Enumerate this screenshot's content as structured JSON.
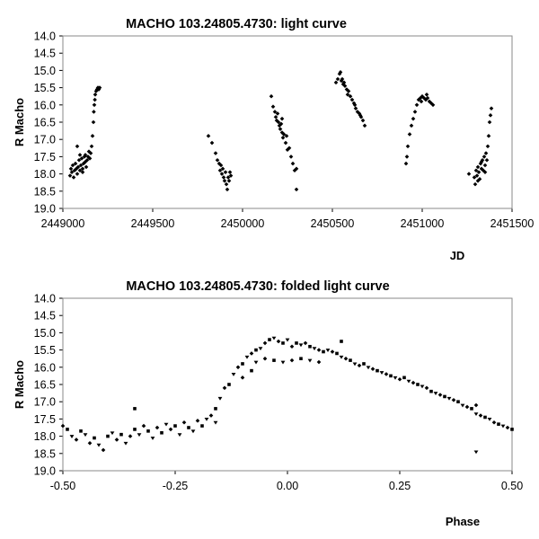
{
  "chart_data": [
    {
      "type": "scatter",
      "title": "MACHO 103.24805.4730: light curve",
      "xlabel": "JD",
      "ylabel": "R Macho",
      "xlim": [
        2449000,
        2451500
      ],
      "ylim": [
        14.0,
        19.0
      ],
      "y_inverted": true,
      "grid": false,
      "xticks": [
        "2449000",
        "2449500",
        "2450000",
        "2450500",
        "2451000",
        "2451500"
      ],
      "yticks": [
        "14.0",
        "14.5",
        "15.0",
        "15.5",
        "16.0",
        "16.5",
        "17.0",
        "17.5",
        "18.0",
        "18.5",
        "19.0"
      ],
      "series": [
        {
          "points": [
            [
              2449040,
              18.05
            ],
            [
              2449045,
              17.85
            ],
            [
              2449050,
              17.95
            ],
            [
              2449055,
              17.75
            ],
            [
              2449060,
              18.1
            ],
            [
              2449065,
              17.9
            ],
            [
              2449070,
              17.7
            ],
            [
              2449075,
              17.85
            ],
            [
              2449080,
              18.0
            ],
            [
              2449085,
              17.8
            ],
            [
              2449090,
              17.6
            ],
            [
              2449095,
              17.9
            ],
            [
              2449100,
              17.75
            ],
            [
              2449105,
              17.55
            ],
            [
              2449110,
              17.85
            ],
            [
              2449115,
              17.7
            ],
            [
              2449120,
              17.5
            ],
            [
              2449125,
              17.65
            ],
            [
              2449130,
              17.8
            ],
            [
              2449135,
              17.6
            ],
            [
              2449140,
              17.5
            ],
            [
              2449145,
              17.35
            ],
            [
              2449150,
              17.55
            ],
            [
              2449155,
              17.4
            ],
            [
              2449160,
              17.2
            ],
            [
              2449165,
              16.9
            ],
            [
              2449170,
              16.5
            ],
            [
              2449172,
              16.2
            ],
            [
              2449175,
              16.0
            ],
            [
              2449178,
              15.85
            ],
            [
              2449180,
              15.7
            ],
            [
              2449185,
              15.6
            ],
            [
              2449190,
              15.55
            ],
            [
              2449195,
              15.5
            ],
            [
              2449200,
              15.55
            ],
            [
              2449205,
              15.5
            ],
            [
              2449080,
              17.2
            ],
            [
              2449095,
              17.45
            ],
            [
              2449110,
              17.95
            ],
            [
              2449125,
              17.45
            ],
            [
              2449810,
              16.9
            ],
            [
              2449830,
              17.1
            ],
            [
              2449850,
              17.4
            ],
            [
              2449860,
              17.6
            ],
            [
              2449870,
              17.7
            ],
            [
              2449875,
              17.9
            ],
            [
              2449880,
              17.75
            ],
            [
              2449885,
              18.0
            ],
            [
              2449890,
              17.85
            ],
            [
              2449895,
              18.1
            ],
            [
              2449900,
              18.2
            ],
            [
              2449905,
              17.95
            ],
            [
              2449910,
              18.3
            ],
            [
              2449915,
              18.45
            ],
            [
              2449920,
              18.1
            ],
            [
              2449925,
              18.2
            ],
            [
              2449930,
              17.95
            ],
            [
              2449935,
              18.05
            ],
            [
              2450160,
              15.75
            ],
            [
              2450170,
              16.05
            ],
            [
              2450180,
              16.2
            ],
            [
              2450185,
              16.35
            ],
            [
              2450190,
              16.45
            ],
            [
              2450195,
              16.25
            ],
            [
              2450200,
              16.5
            ],
            [
              2450205,
              16.6
            ],
            [
              2450210,
              16.7
            ],
            [
              2450215,
              16.55
            ],
            [
              2450220,
              16.8
            ],
            [
              2450225,
              16.95
            ],
            [
              2450230,
              16.85
            ],
            [
              2450240,
              17.1
            ],
            [
              2450250,
              17.3
            ],
            [
              2450260,
              17.25
            ],
            [
              2450270,
              17.5
            ],
            [
              2450280,
              17.7
            ],
            [
              2450290,
              17.9
            ],
            [
              2450300,
              17.85
            ],
            [
              2450300,
              18.45
            ],
            [
              2450220,
              16.4
            ],
            [
              2450245,
              16.9
            ],
            [
              2450520,
              15.35
            ],
            [
              2450530,
              15.25
            ],
            [
              2450540,
              15.1
            ],
            [
              2450545,
              15.05
            ],
            [
              2450550,
              15.3
            ],
            [
              2450555,
              15.25
            ],
            [
              2450560,
              15.4
            ],
            [
              2450570,
              15.45
            ],
            [
              2450580,
              15.55
            ],
            [
              2450590,
              15.6
            ],
            [
              2450600,
              15.75
            ],
            [
              2450610,
              15.85
            ],
            [
              2450620,
              15.95
            ],
            [
              2450630,
              16.1
            ],
            [
              2450640,
              16.2
            ],
            [
              2450650,
              16.25
            ],
            [
              2450660,
              16.35
            ],
            [
              2450670,
              16.45
            ],
            [
              2450680,
              16.6
            ],
            [
              2450565,
              15.35
            ],
            [
              2450585,
              15.7
            ],
            [
              2450625,
              16.0
            ],
            [
              2450655,
              16.3
            ],
            [
              2450910,
              17.7
            ],
            [
              2450915,
              17.5
            ],
            [
              2450920,
              17.2
            ],
            [
              2450930,
              16.85
            ],
            [
              2450940,
              16.6
            ],
            [
              2450950,
              16.4
            ],
            [
              2450960,
              16.2
            ],
            [
              2450970,
              16.0
            ],
            [
              2450980,
              15.85
            ],
            [
              2450990,
              15.8
            ],
            [
              2451000,
              15.75
            ],
            [
              2451010,
              15.8
            ],
            [
              2451020,
              15.85
            ],
            [
              2451030,
              15.8
            ],
            [
              2451040,
              15.9
            ],
            [
              2451050,
              15.95
            ],
            [
              2451060,
              16.0
            ],
            [
              2450995,
              15.9
            ],
            [
              2451025,
              15.7
            ],
            [
              2451260,
              18.0
            ],
            [
              2451290,
              18.1
            ],
            [
              2451295,
              18.3
            ],
            [
              2451300,
              17.9
            ],
            [
              2451305,
              18.05
            ],
            [
              2451310,
              17.8
            ],
            [
              2451315,
              17.95
            ],
            [
              2451320,
              18.15
            ],
            [
              2451325,
              17.7
            ],
            [
              2451330,
              17.85
            ],
            [
              2451335,
              17.6
            ],
            [
              2451340,
              17.9
            ],
            [
              2451345,
              17.5
            ],
            [
              2451350,
              17.75
            ],
            [
              2451355,
              17.4
            ],
            [
              2451360,
              17.6
            ],
            [
              2451365,
              17.2
            ],
            [
              2451370,
              16.9
            ],
            [
              2451375,
              16.5
            ],
            [
              2451380,
              16.3
            ],
            [
              2451385,
              16.1
            ],
            [
              2451310,
              18.2
            ],
            [
              2451330,
              17.65
            ],
            [
              2451350,
              17.95
            ]
          ]
        }
      ]
    },
    {
      "type": "scatter",
      "title": "MACHO 103.24805.4730: folded light curve",
      "xlabel": "Phase",
      "ylabel": "R Macho",
      "xlim": [
        -0.5,
        0.5
      ],
      "ylim": [
        14.0,
        19.0
      ],
      "y_inverted": true,
      "grid": false,
      "xticks": [
        "-0.50",
        "-0.25",
        "0.00",
        "0.25",
        "0.50"
      ],
      "yticks": [
        "14.0",
        "14.5",
        "15.0",
        "15.5",
        "16.0",
        "16.5",
        "17.0",
        "17.5",
        "18.0",
        "18.5",
        "19.0"
      ],
      "series": [
        {
          "points": [
            [
              -0.5,
              17.7
            ],
            [
              -0.49,
              17.8
            ],
            [
              -0.48,
              18.0
            ],
            [
              -0.47,
              18.1
            ],
            [
              -0.46,
              17.85
            ],
            [
              -0.45,
              17.95
            ],
            [
              -0.44,
              18.2
            ],
            [
              -0.43,
              18.05
            ],
            [
              -0.42,
              18.25
            ],
            [
              -0.41,
              18.4
            ],
            [
              -0.4,
              18.0
            ],
            [
              -0.39,
              17.9
            ],
            [
              -0.38,
              18.1
            ],
            [
              -0.37,
              17.95
            ],
            [
              -0.36,
              18.2
            ],
            [
              -0.35,
              18.0
            ],
            [
              -0.34,
              17.8
            ],
            [
              -0.33,
              17.95
            ],
            [
              -0.32,
              17.7
            ],
            [
              -0.31,
              17.85
            ],
            [
              -0.3,
              18.05
            ],
            [
              -0.29,
              17.75
            ],
            [
              -0.28,
              17.9
            ],
            [
              -0.27,
              17.65
            ],
            [
              -0.26,
              17.8
            ],
            [
              -0.25,
              17.7
            ],
            [
              -0.24,
              17.95
            ],
            [
              -0.23,
              17.6
            ],
            [
              -0.22,
              17.75
            ],
            [
              -0.21,
              17.85
            ],
            [
              -0.2,
              17.55
            ],
            [
              -0.19,
              17.7
            ],
            [
              -0.18,
              17.5
            ],
            [
              -0.17,
              17.4
            ],
            [
              -0.16,
              17.2
            ],
            [
              -0.15,
              16.9
            ],
            [
              -0.14,
              16.6
            ],
            [
              -0.13,
              16.5
            ],
            [
              -0.12,
              16.2
            ],
            [
              -0.11,
              16.0
            ],
            [
              -0.1,
              15.9
            ],
            [
              -0.09,
              15.7
            ],
            [
              -0.08,
              15.6
            ],
            [
              -0.07,
              15.5
            ],
            [
              -0.06,
              15.45
            ],
            [
              -0.05,
              15.3
            ],
            [
              -0.04,
              15.2
            ],
            [
              -0.03,
              15.15
            ],
            [
              -0.02,
              15.25
            ],
            [
              -0.01,
              15.3
            ],
            [
              0.0,
              15.2
            ],
            [
              0.01,
              15.4
            ],
            [
              0.02,
              15.3
            ],
            [
              0.03,
              15.35
            ],
            [
              0.04,
              15.3
            ],
            [
              0.05,
              15.4
            ],
            [
              0.06,
              15.45
            ],
            [
              0.07,
              15.5
            ],
            [
              0.08,
              15.55
            ],
            [
              0.09,
              15.5
            ],
            [
              0.1,
              15.55
            ],
            [
              0.11,
              15.6
            ],
            [
              0.12,
              15.7
            ],
            [
              0.13,
              15.75
            ],
            [
              0.14,
              15.8
            ],
            [
              0.15,
              15.9
            ],
            [
              0.16,
              15.95
            ],
            [
              0.17,
              15.9
            ],
            [
              0.18,
              16.0
            ],
            [
              0.19,
              16.05
            ],
            [
              0.2,
              16.1
            ],
            [
              0.21,
              16.15
            ],
            [
              0.22,
              16.2
            ],
            [
              0.23,
              16.25
            ],
            [
              0.24,
              16.3
            ],
            [
              0.25,
              16.35
            ],
            [
              0.26,
              16.3
            ],
            [
              0.27,
              16.4
            ],
            [
              0.28,
              16.45
            ],
            [
              0.29,
              16.5
            ],
            [
              0.3,
              16.55
            ],
            [
              0.31,
              16.6
            ],
            [
              0.32,
              16.7
            ],
            [
              0.33,
              16.75
            ],
            [
              0.34,
              16.8
            ],
            [
              0.35,
              16.85
            ],
            [
              0.36,
              16.9
            ],
            [
              0.37,
              16.95
            ],
            [
              0.38,
              17.0
            ],
            [
              0.39,
              17.1
            ],
            [
              0.4,
              17.15
            ],
            [
              0.41,
              17.2
            ],
            [
              0.42,
              17.35
            ],
            [
              0.43,
              17.4
            ],
            [
              0.44,
              17.45
            ],
            [
              0.45,
              17.5
            ],
            [
              0.46,
              17.6
            ],
            [
              0.47,
              17.65
            ],
            [
              0.48,
              17.7
            ],
            [
              0.49,
              17.75
            ],
            [
              0.5,
              17.8
            ],
            [
              -0.07,
              15.85
            ],
            [
              -0.05,
              15.75
            ],
            [
              -0.03,
              15.8
            ],
            [
              -0.01,
              15.85
            ],
            [
              0.01,
              15.8
            ],
            [
              0.03,
              15.75
            ],
            [
              0.05,
              15.8
            ],
            [
              0.07,
              15.85
            ],
            [
              -0.34,
              17.2
            ],
            [
              0.42,
              18.45
            ],
            [
              0.42,
              17.1
            ],
            [
              0.12,
              15.25
            ],
            [
              -0.16,
              17.6
            ],
            [
              -0.1,
              16.3
            ],
            [
              -0.08,
              16.1
            ]
          ]
        }
      ]
    }
  ]
}
